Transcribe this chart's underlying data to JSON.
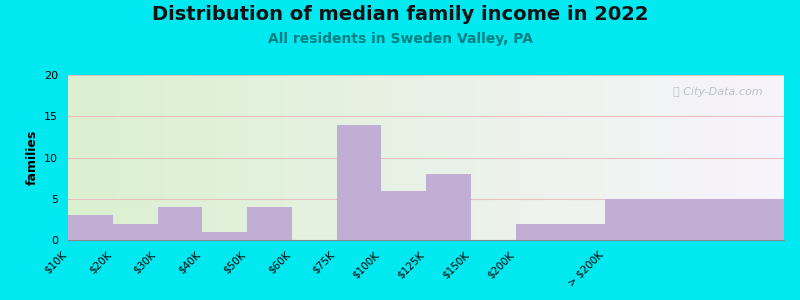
{
  "title": "Distribution of median family income in 2022",
  "subtitle": "All residents in Sweden Valley, PA",
  "bar_color": "#c0aed4",
  "ylabel": "families",
  "ylim": [
    0,
    20
  ],
  "yticks": [
    0,
    5,
    10,
    15,
    20
  ],
  "background_outer": "#00e8f0",
  "title_fontsize": 14,
  "subtitle_fontsize": 10,
  "watermark": "ⓘ City-Data.com",
  "grid_color": "#e8c0c0",
  "bin_edges": [
    0,
    1,
    2,
    3,
    4,
    5,
    6,
    7,
    8,
    9,
    10,
    12,
    16
  ],
  "bin_labels": [
    "$10K",
    "$20K",
    "$30K",
    "$40K",
    "$50K",
    "$60K",
    "$75K",
    "$100K",
    "$125K",
    "$150K",
    "$200K",
    "> $200K"
  ],
  "values": [
    3,
    2,
    4,
    1,
    4,
    0,
    14,
    6,
    8,
    0,
    2,
    5
  ]
}
